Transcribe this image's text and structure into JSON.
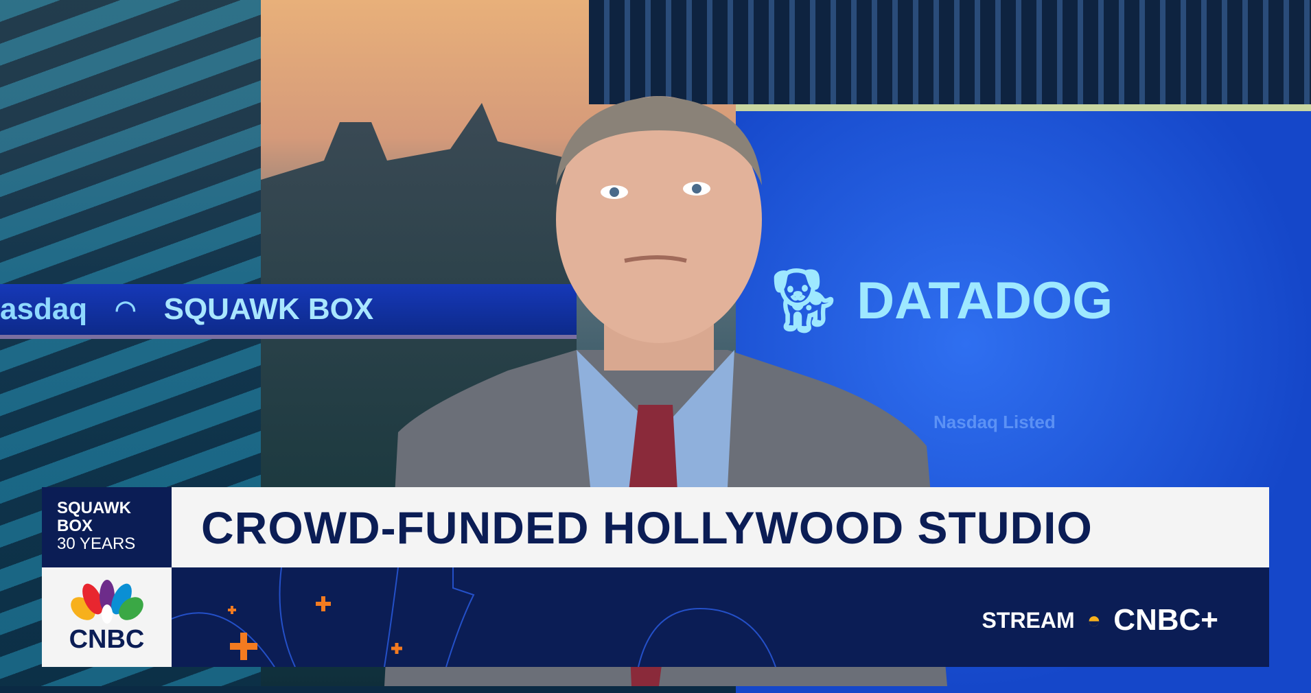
{
  "background": {
    "ticker_text_left": "asdaq",
    "ticker_show_name": "SQUAWK BOX",
    "screen_logo": "DATADOG",
    "screen_subtext": "Nasdaq Listed"
  },
  "lower_third": {
    "show_label": [
      "SQUAWK",
      "BOX",
      "30 YEARS"
    ],
    "headline": "CROWD-FUNDED HOLLYWOOD STUDIO",
    "network_logo": "CNBC",
    "stream_label": "STREAM",
    "stream_brand": "CNBC+"
  },
  "colors": {
    "navy": "#0b1d55",
    "accent_orange": "#f47b20",
    "screen_blue": "#1547c9"
  }
}
